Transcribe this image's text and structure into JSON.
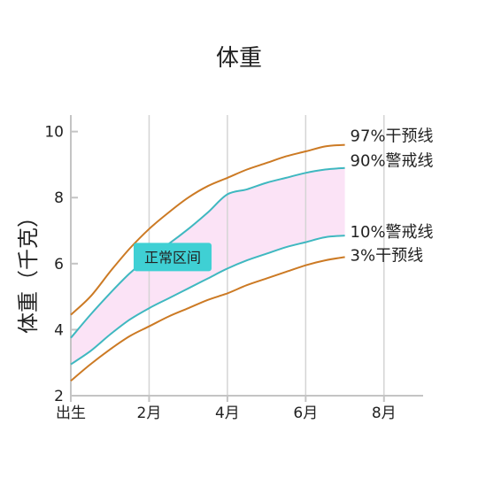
{
  "chart_data": {
    "type": "line",
    "title": "体重",
    "xlabel": "",
    "ylabel": "体重（千克）",
    "xlim": [
      0,
      9
    ],
    "ylim": [
      2,
      10.5
    ],
    "grid": {
      "vertical": true,
      "horizontal": false
    },
    "x_ticks": [
      {
        "value": 0,
        "label": "出生"
      },
      {
        "value": 2,
        "label": "2月"
      },
      {
        "value": 4,
        "label": "4月"
      },
      {
        "value": 6,
        "label": "6月"
      },
      {
        "value": 8,
        "label": "8月"
      }
    ],
    "y_ticks": [
      2,
      4,
      6,
      8,
      10
    ],
    "series": [
      {
        "name": "97%干预线",
        "color": "#cc7a24",
        "x": [
          0,
          0.5,
          1,
          1.5,
          2,
          2.5,
          3,
          3.5,
          4,
          4.5,
          5,
          5.5,
          6,
          6.5,
          7
        ],
        "y": [
          4.45,
          5.0,
          5.75,
          6.45,
          7.05,
          7.55,
          8.0,
          8.35,
          8.6,
          8.85,
          9.05,
          9.25,
          9.4,
          9.55,
          9.6
        ]
      },
      {
        "name": "90%警戒线",
        "color": "#3fb8c0",
        "x": [
          0,
          0.5,
          1,
          1.5,
          2,
          2.5,
          3,
          3.5,
          4,
          4.5,
          5,
          5.5,
          6,
          6.5,
          7
        ],
        "y": [
          3.75,
          4.45,
          5.1,
          5.7,
          6.2,
          6.6,
          7.05,
          7.55,
          8.1,
          8.25,
          8.45,
          8.6,
          8.75,
          8.85,
          8.9
        ]
      },
      {
        "name": "10%警戒线",
        "color": "#3fb8c0",
        "x": [
          0,
          0.5,
          1,
          1.5,
          2,
          2.5,
          3,
          3.5,
          4,
          4.5,
          5,
          5.5,
          6,
          6.5,
          7
        ],
        "y": [
          2.95,
          3.35,
          3.85,
          4.3,
          4.65,
          4.95,
          5.25,
          5.55,
          5.85,
          6.1,
          6.3,
          6.5,
          6.65,
          6.8,
          6.85
        ]
      },
      {
        "name": "3%干预线",
        "color": "#cc7a24",
        "x": [
          0,
          0.5,
          1,
          1.5,
          2,
          2.5,
          3,
          3.5,
          4,
          4.5,
          5,
          5.5,
          6,
          6.5,
          7
        ],
        "y": [
          2.45,
          2.95,
          3.4,
          3.8,
          4.1,
          4.4,
          4.65,
          4.9,
          5.1,
          5.35,
          5.55,
          5.75,
          5.95,
          6.1,
          6.2
        ]
      }
    ],
    "band": {
      "between": [
        "90%警戒线",
        "10%警戒线"
      ],
      "color": "#fbe3f6"
    },
    "annotations": [
      {
        "text": "正常区间",
        "x": 2.6,
        "y": 6.2,
        "color": "#3fd0d4"
      }
    ]
  }
}
